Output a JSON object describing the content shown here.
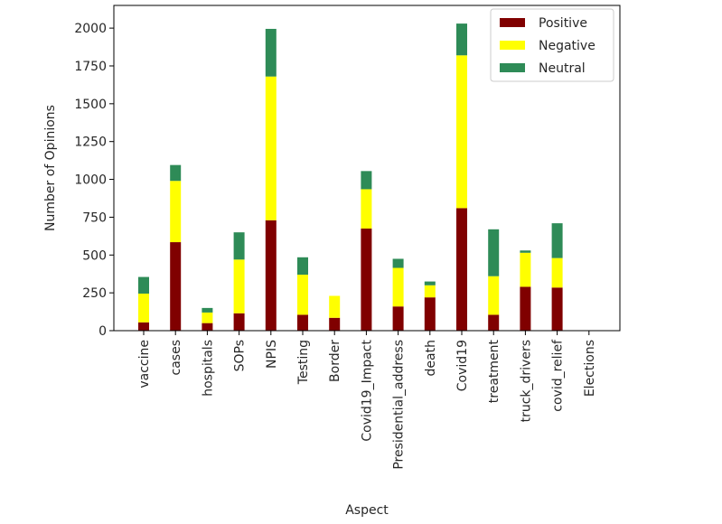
{
  "chart_data": {
    "type": "bar",
    "stacked": true,
    "title": "",
    "xlabel": "Aspect",
    "ylabel": "Number of Opinions",
    "ylim": [
      0,
      2150
    ],
    "yticks": [
      0,
      250,
      500,
      750,
      1000,
      1250,
      1500,
      1750,
      2000
    ],
    "grid": false,
    "legend_position": "top-right",
    "categories": [
      "vaccine",
      "cases",
      "hospitals",
      "SOPs",
      "NPIS",
      "Testing",
      "Border",
      "Covid19_Impact",
      "Presidential_address",
      "death",
      "Covid19",
      "treatment",
      "truck_drivers",
      "covid_relief",
      "Elections"
    ],
    "series": [
      {
        "name": "Positive",
        "color": "#800000",
        "values": [
          55,
          585,
          50,
          115,
          730,
          105,
          85,
          675,
          160,
          220,
          810,
          105,
          290,
          285,
          0
        ]
      },
      {
        "name": "Negative",
        "color": "#ffff00",
        "values": [
          190,
          405,
          70,
          355,
          950,
          265,
          145,
          260,
          255,
          80,
          1010,
          255,
          225,
          195,
          0
        ]
      },
      {
        "name": "Neutral",
        "color": "#2e8b57",
        "values": [
          110,
          105,
          30,
          180,
          315,
          115,
          0,
          120,
          60,
          25,
          210,
          310,
          15,
          230,
          0
        ]
      }
    ]
  }
}
